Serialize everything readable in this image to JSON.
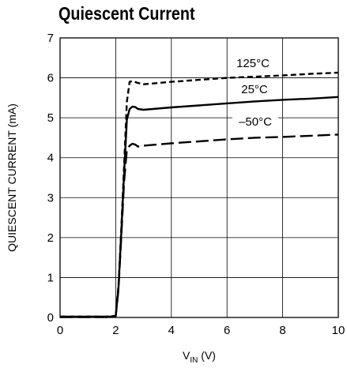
{
  "chart_data": {
    "type": "line",
    "title": "Quiescent Current",
    "xlabel": "V_IN (V)",
    "xlabel_main": "V",
    "xlabel_sub": "IN",
    "xlabel_unit": " (V)",
    "ylabel": "QUIESCENT CURRENT (mA)",
    "xlim": [
      0,
      10
    ],
    "ylim": [
      0,
      7
    ],
    "xticks": [
      "0",
      "2",
      "4",
      "6",
      "8",
      "10"
    ],
    "yticks": [
      "0",
      "1",
      "2",
      "3",
      "4",
      "5",
      "6",
      "7"
    ],
    "grid": true,
    "series": [
      {
        "name": "125°C",
        "dash": "medium",
        "x": [
          0,
          1.8,
          2.0,
          2.1,
          2.2,
          2.3,
          2.4,
          2.5,
          2.6,
          2.8,
          3.0,
          4,
          5,
          6,
          7,
          8,
          9,
          10
        ],
        "y": [
          0.02,
          0.02,
          0.05,
          0.8,
          2.2,
          3.8,
          5.4,
          5.9,
          5.92,
          5.87,
          5.84,
          5.9,
          5.95,
          6.0,
          6.03,
          6.06,
          6.1,
          6.13
        ]
      },
      {
        "name": "25°C",
        "dash": "solid",
        "x": [
          0,
          1.8,
          2.0,
          2.1,
          2.2,
          2.3,
          2.4,
          2.5,
          2.6,
          2.7,
          2.8,
          3.0,
          4,
          5,
          6,
          7,
          8,
          9,
          10
        ],
        "y": [
          0.02,
          0.02,
          0.04,
          0.75,
          2.1,
          3.6,
          4.95,
          5.22,
          5.28,
          5.27,
          5.22,
          5.2,
          5.26,
          5.31,
          5.36,
          5.41,
          5.45,
          5.48,
          5.52
        ]
      },
      {
        "name": "–50°C",
        "dash": "long",
        "x": [
          0,
          1.8,
          2.0,
          2.1,
          2.2,
          2.3,
          2.4,
          2.5,
          2.6,
          2.7,
          2.8,
          3.0,
          4,
          5,
          6,
          7,
          8,
          9,
          10
        ],
        "y": [
          0.01,
          0.01,
          0.03,
          0.7,
          2.0,
          3.4,
          4.2,
          4.3,
          4.35,
          4.33,
          4.28,
          4.3,
          4.36,
          4.41,
          4.46,
          4.5,
          4.52,
          4.55,
          4.58
        ]
      }
    ]
  }
}
